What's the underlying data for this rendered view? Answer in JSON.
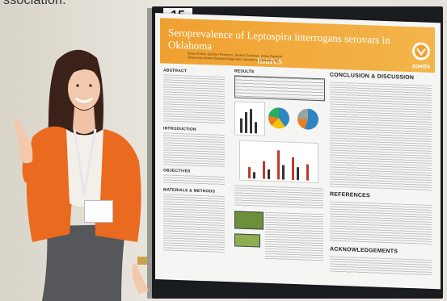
{
  "caption_fragment": "ssociation.",
  "booth_number": "15",
  "poster": {
    "title_line1": "Seroprevalence of Leptospira interrogans serovars in Oklahoma",
    "title_line2": "mares",
    "authors": "Grace Cross, Quinton Peterson, Jessica Coleman, Ginny Reisdorf",
    "affiliation": "Oklahoma Animal Disease Diagnostic Laboratory, Stillwater, OK",
    "logo_text": "zoetis",
    "sections": {
      "abstract": "ABSTRACT",
      "results": "RESULTS",
      "conclusion": "CONCLUSION & DISCUSSION",
      "introduction": "INTRODUCTION",
      "objectives": "OBJECTIVES",
      "materials": "MATERIALS & METHODS",
      "references": "REFERENCES",
      "acknowledgements": "ACKNOWLEDGEMENTS"
    }
  },
  "colors": {
    "banner": "#f0a030",
    "jacket": "#ea6a1f",
    "board": "#1b1c20"
  }
}
